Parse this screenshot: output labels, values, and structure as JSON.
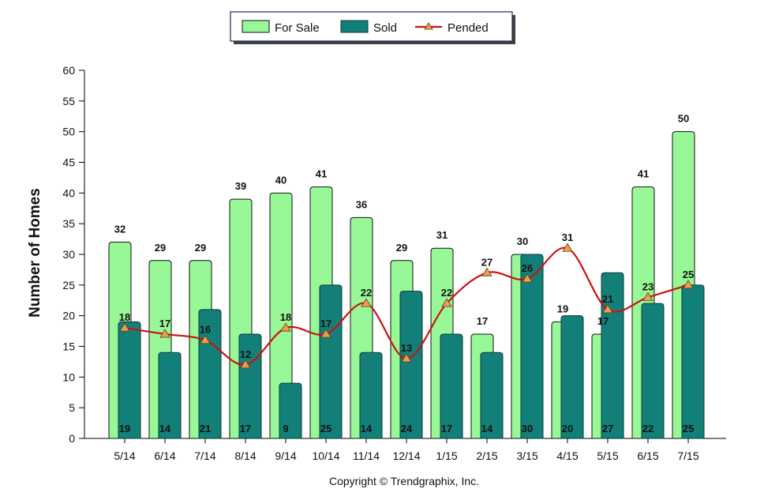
{
  "chart_data": {
    "type": "bar",
    "categories": [
      "5/14",
      "6/14",
      "7/14",
      "8/14",
      "9/14",
      "10/14",
      "11/14",
      "12/14",
      "1/15",
      "2/15",
      "3/15",
      "4/15",
      "5/15",
      "6/15",
      "7/15"
    ],
    "series": [
      {
        "name": "For Sale",
        "type": "bar",
        "color": "#98f898",
        "values": [
          32,
          29,
          29,
          39,
          40,
          41,
          36,
          29,
          31,
          17,
          30,
          19,
          17,
          41,
          50
        ]
      },
      {
        "name": "Sold",
        "type": "bar",
        "color": "#128078",
        "values": [
          19,
          14,
          21,
          17,
          9,
          25,
          14,
          24,
          17,
          14,
          30,
          20,
          27,
          22,
          25
        ]
      },
      {
        "name": "Pended",
        "type": "line",
        "color": "#cc1111",
        "marker_color": "#e8a050",
        "values": [
          18,
          17,
          16,
          12,
          18,
          17,
          22,
          13,
          22,
          27,
          26,
          31,
          21,
          23,
          25
        ]
      }
    ],
    "ylabel": "Number of Homes",
    "xlabel": "",
    "ylim": [
      0,
      60
    ],
    "yticks": [
      0,
      5,
      10,
      15,
      20,
      25,
      30,
      35,
      40,
      45,
      50,
      55,
      60
    ],
    "legend_position": "top-center",
    "grid": false
  },
  "footer": "Copyright © Trendgraphix, Inc."
}
